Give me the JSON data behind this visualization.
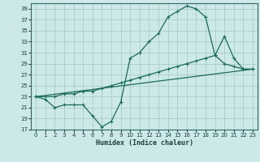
{
  "background_color": "#cce8e8",
  "grid_color": "#aacccc",
  "line_color": "#1a6b5a",
  "xlabel": "Humidex (Indice chaleur)",
  "xlim": [
    -0.5,
    23.5
  ],
  "ylim": [
    17,
    40
  ],
  "yticks": [
    17,
    19,
    21,
    23,
    25,
    27,
    29,
    31,
    33,
    35,
    37,
    39
  ],
  "xticks": [
    0,
    1,
    2,
    3,
    4,
    5,
    6,
    7,
    8,
    9,
    10,
    11,
    12,
    13,
    14,
    15,
    16,
    17,
    18,
    19,
    20,
    21,
    22,
    23
  ],
  "series1_x": [
    0,
    1,
    2,
    3,
    4,
    5,
    6,
    7,
    8,
    9,
    10,
    11,
    12,
    13,
    14,
    15,
    16,
    17,
    18,
    19,
    20,
    21,
    22,
    23
  ],
  "series1_y": [
    23,
    22.5,
    21,
    21.5,
    21.5,
    21.5,
    19.5,
    17.5,
    18.5,
    22,
    30,
    31,
    33,
    34.5,
    37.5,
    38.5,
    39.5,
    39,
    37.5,
    30.5,
    29,
    28.5,
    28,
    28
  ],
  "series2_x": [
    0,
    1,
    2,
    3,
    4,
    5,
    6,
    7,
    8,
    9,
    10,
    11,
    12,
    13,
    14,
    15,
    16,
    17,
    18,
    19,
    20,
    21,
    22,
    23
  ],
  "series2_y": [
    23,
    23,
    23,
    23.5,
    23.5,
    24,
    24,
    24.5,
    25,
    25.5,
    26,
    26.5,
    27,
    27.5,
    28,
    28.5,
    29,
    29.5,
    30,
    30.5,
    34,
    30,
    28,
    28
  ],
  "series3_x": [
    0,
    23
  ],
  "series3_y": [
    23,
    28
  ]
}
